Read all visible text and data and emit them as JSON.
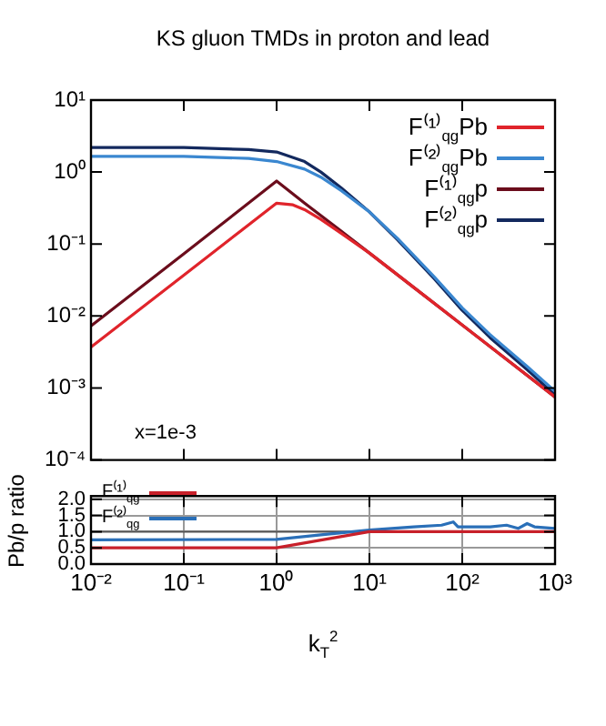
{
  "chart_data": [
    {
      "type": "line",
      "title": "KS gluon TMDs in proton and lead",
      "annotations": [
        "x=1e-3"
      ],
      "log": "xy",
      "xlim": [
        0.01,
        1000
      ],
      "ylim": [
        0.0001,
        10
      ],
      "xticks": [
        {
          "value": 0.01,
          "label": null
        },
        {
          "value": 0.1,
          "label": null
        },
        {
          "value": 1,
          "label": null
        },
        {
          "value": 10,
          "label": null
        },
        {
          "value": 100,
          "label": null
        },
        {
          "value": 1000,
          "label": null
        }
      ],
      "yticks": [
        {
          "value": 0.0001,
          "label": "10⁻⁴"
        },
        {
          "value": 0.001,
          "label": "10⁻³"
        },
        {
          "value": 0.01,
          "label": "10⁻²"
        },
        {
          "value": 0.1,
          "label": "10⁻¹"
        },
        {
          "value": 1,
          "label": "10⁰"
        },
        {
          "value": 10,
          "label": "10¹"
        }
      ],
      "tick_labels": "y",
      "grid": false,
      "legend": "top right",
      "marker": "none",
      "line_style": "solid",
      "series": [
        {
          "name": "F⁽¹⁾$_{qg}$Pb",
          "color": "#e0242b",
          "x": [
            0.01,
            0.1,
            1,
            1.5,
            2,
            3,
            5,
            10,
            30,
            100,
            300,
            1000
          ],
          "values": [
            0.0037,
            0.037,
            0.37,
            0.35,
            0.3,
            0.22,
            0.14,
            0.075,
            0.025,
            0.0075,
            0.0025,
            0.00075
          ]
        },
        {
          "name": "F⁽²⁾$_{qg}$Pb",
          "color": "#3a87d0",
          "x": [
            0.01,
            0.1,
            0.5,
            1,
            2,
            3,
            5,
            10,
            20,
            50,
            100,
            200,
            500,
            1000
          ],
          "values": [
            1.65,
            1.65,
            1.55,
            1.4,
            1.1,
            0.85,
            0.55,
            0.28,
            0.12,
            0.035,
            0.013,
            0.0055,
            0.002,
            0.0009
          ]
        },
        {
          "name": "F⁽¹⁾$_{qg}$p",
          "color": "#6b0d1c",
          "x": [
            0.01,
            0.1,
            1,
            2,
            5,
            10,
            30,
            100,
            300,
            1000
          ],
          "values": [
            0.0073,
            0.073,
            0.75,
            0.37,
            0.15,
            0.075,
            0.025,
            0.0075,
            0.0025,
            0.00075
          ]
        },
        {
          "name": "F⁽²⁾$_{qg}$p",
          "color": "#13295e",
          "x": [
            0.01,
            0.1,
            0.5,
            1,
            2,
            3,
            5,
            10,
            20,
            50,
            100,
            200,
            500,
            1000
          ],
          "values": [
            2.2,
            2.2,
            2.05,
            1.9,
            1.4,
            1.0,
            0.6,
            0.28,
            0.115,
            0.033,
            0.012,
            0.005,
            0.0018,
            0.0008
          ]
        }
      ]
    },
    {
      "type": "line",
      "xlabel": "k$_{T}$$^{2}$",
      "ylabel": "Pb/p ratio",
      "log": "x",
      "xlim": [
        0.01,
        1000
      ],
      "ylim": [
        0,
        2.1
      ],
      "xticks": [
        {
          "value": 0.01,
          "label": "10⁻²"
        },
        {
          "value": 0.1,
          "label": "10⁻¹"
        },
        {
          "value": 1,
          "label": "10⁰"
        },
        {
          "value": 10,
          "label": "10¹"
        },
        {
          "value": 100,
          "label": "10²"
        },
        {
          "value": 1000,
          "label": "10³"
        }
      ],
      "yticks": [
        {
          "value": 0,
          "label": "0.0"
        },
        {
          "value": 0.5,
          "label": "0.5"
        },
        {
          "value": 1,
          "label": "1.0"
        },
        {
          "value": 1.5,
          "label": "1.5"
        },
        {
          "value": 2,
          "label": "2.0"
        }
      ],
      "grid": true,
      "legend": "top left",
      "marker": "none",
      "line_style": "solid",
      "ref_lines": [
        {
          "axis": "y",
          "value": 1,
          "color": "#555555"
        }
      ],
      "series": [
        {
          "name": "F⁽¹⁾$_{qg}$",
          "color": "#c8202a",
          "x": [
            0.01,
            1,
            10,
            1000
          ],
          "values": [
            0.5,
            0.5,
            1.0,
            1.0
          ]
        },
        {
          "name": "F⁽²⁾$_{qg}$",
          "color": "#2a6fb8",
          "x": [
            0.01,
            1,
            3,
            10,
            30,
            60,
            80,
            90,
            100,
            200,
            300,
            400,
            500,
            600,
            1000
          ],
          "values": [
            0.75,
            0.76,
            0.9,
            1.05,
            1.15,
            1.2,
            1.3,
            1.15,
            1.15,
            1.15,
            1.2,
            1.1,
            1.25,
            1.15,
            1.1
          ]
        }
      ]
    }
  ]
}
